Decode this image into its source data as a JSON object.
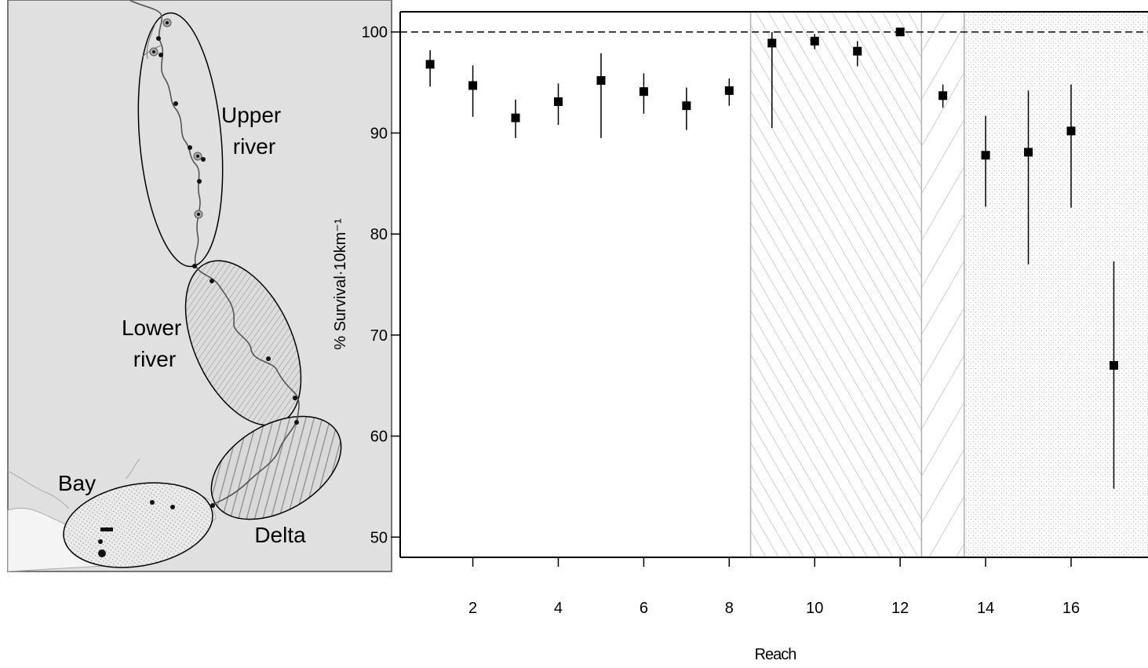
{
  "map": {
    "regions": [
      {
        "id": "upper",
        "lines": [
          "Upper",
          "river"
        ]
      },
      {
        "id": "lower",
        "lines": [
          "Lower",
          "river"
        ]
      },
      {
        "id": "delta",
        "lines": [
          "Delta"
        ]
      },
      {
        "id": "bay",
        "lines": [
          "Bay"
        ]
      }
    ],
    "colors": {
      "background": "#e0e0e0",
      "river": "#555555",
      "marker": "#111111"
    }
  },
  "chart_data": {
    "type": "scatter",
    "xlabel": "Reach",
    "ylabel": "% Survival·10km⁻¹",
    "xlim": [
      0.3,
      17.8
    ],
    "ylim": [
      48,
      102
    ],
    "xticks": [
      2,
      4,
      6,
      8,
      10,
      12,
      14,
      16
    ],
    "yticks": [
      50,
      60,
      70,
      80,
      90,
      100
    ],
    "reference_line": 100,
    "region_bands": [
      {
        "region": "upper",
        "x_range": [
          0.3,
          8.5
        ],
        "fill": "none"
      },
      {
        "region": "lower",
        "x_range": [
          8.5,
          12.5
        ],
        "fill": "hatch-steep"
      },
      {
        "region": "delta",
        "x_range": [
          12.5,
          13.5
        ],
        "fill": "hatch-wide"
      },
      {
        "region": "bay",
        "x_range": [
          13.5,
          17.8
        ],
        "fill": "stipple"
      }
    ],
    "points": [
      {
        "x": 1,
        "y": 96.8,
        "lo": 94.6,
        "hi": 98.2
      },
      {
        "x": 2,
        "y": 94.7,
        "lo": 91.6,
        "hi": 96.7
      },
      {
        "x": 3,
        "y": 91.5,
        "lo": 89.5,
        "hi": 93.3
      },
      {
        "x": 4,
        "y": 93.1,
        "lo": 90.8,
        "hi": 94.9
      },
      {
        "x": 5,
        "y": 95.2,
        "lo": 89.5,
        "hi": 97.9
      },
      {
        "x": 6,
        "y": 94.1,
        "lo": 91.9,
        "hi": 95.9
      },
      {
        "x": 7,
        "y": 92.7,
        "lo": 90.3,
        "hi": 94.5
      },
      {
        "x": 8,
        "y": 94.2,
        "lo": 92.7,
        "hi": 95.4
      },
      {
        "x": 9,
        "y": 98.9,
        "lo": 90.5,
        "hi": 100
      },
      {
        "x": 10,
        "y": 99.1,
        "lo": 98.3,
        "hi": 99.8
      },
      {
        "x": 11,
        "y": 98.1,
        "lo": 96.6,
        "hi": 99.1
      },
      {
        "x": 12,
        "y": 100,
        "lo": 99.6,
        "hi": 100
      },
      {
        "x": 13,
        "y": 93.7,
        "lo": 92.5,
        "hi": 94.8
      },
      {
        "x": 14,
        "y": 87.8,
        "lo": 82.7,
        "hi": 91.7
      },
      {
        "x": 15,
        "y": 88.1,
        "lo": 77.0,
        "hi": 94.2
      },
      {
        "x": 16,
        "y": 90.2,
        "lo": 82.6,
        "hi": 94.8
      },
      {
        "x": 17,
        "y": 67.0,
        "lo": 54.8,
        "hi": 77.3
      }
    ]
  }
}
